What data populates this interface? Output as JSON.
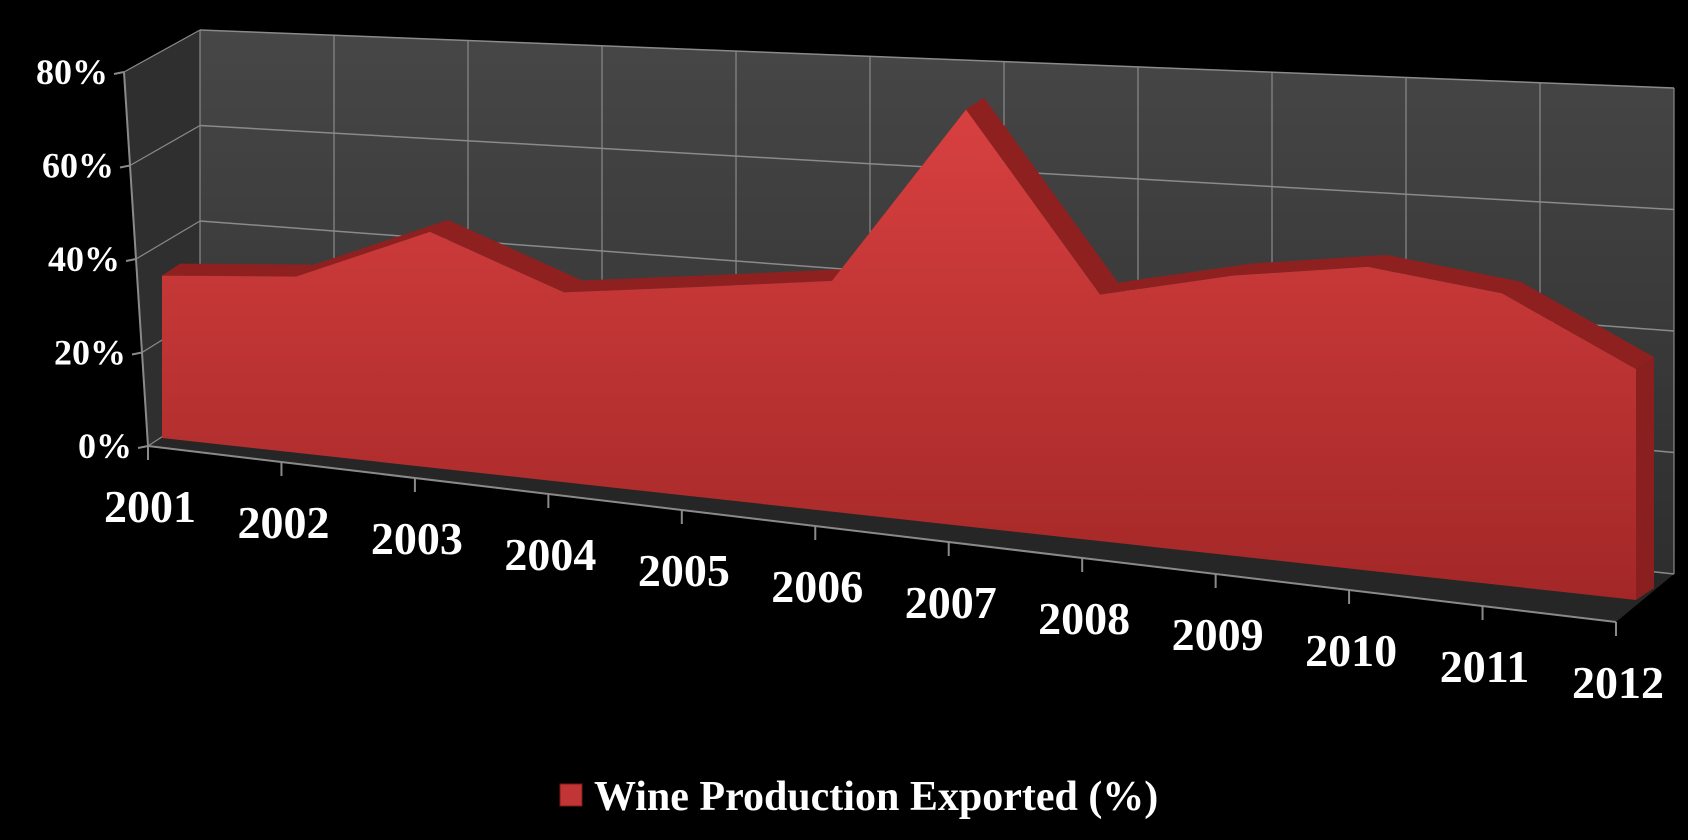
{
  "chart_data": {
    "type": "area",
    "view": "3d",
    "x": [
      "2001",
      "2002",
      "2003",
      "2004",
      "2005",
      "2006",
      "2007",
      "2008",
      "2009",
      "2010",
      "2011",
      "2012"
    ],
    "series": [
      {
        "name": "Wine Production Exported (%)",
        "values": [
          34,
          36,
          47,
          37,
          40,
          43,
          76,
          44,
          49,
          52,
          49,
          38
        ]
      }
    ],
    "ylim": [
      0,
      80
    ],
    "y_ticks": [
      "0%",
      "20%",
      "40%",
      "60%",
      "80%"
    ],
    "grid": true,
    "legend": "bottom",
    "colors": {
      "background": "#000000",
      "area_fill": "#c23535",
      "area_top": "#8f2020",
      "back_wall": "#3d3d3d",
      "side_wall": "#2f2f2f",
      "grid": "#8a8a8a",
      "text": "#ffffff"
    }
  }
}
